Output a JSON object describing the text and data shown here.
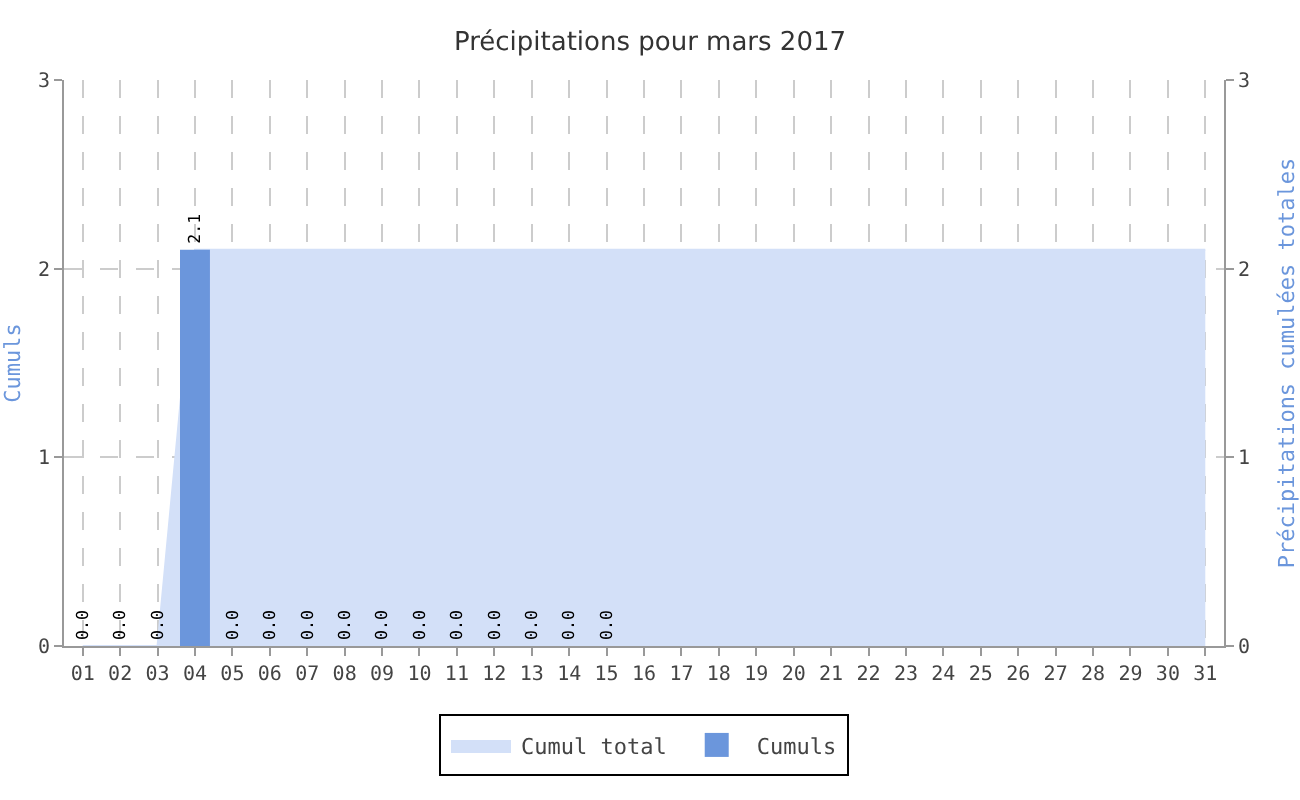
{
  "chart_data": {
    "type": "bar",
    "title": "Précipitations pour mars 2017",
    "ylabel": "Cumuls",
    "y2label": "Précipitations cumulées totales",
    "categories": [
      "01",
      "02",
      "03",
      "04",
      "05",
      "06",
      "07",
      "08",
      "09",
      "10",
      "11",
      "12",
      "13",
      "14",
      "15",
      "16",
      "17",
      "18",
      "19",
      "20",
      "21",
      "22",
      "23",
      "24",
      "25",
      "26",
      "27",
      "28",
      "29",
      "30",
      "31"
    ],
    "series": [
      {
        "name": "Cumul total",
        "type": "area",
        "axis": "y2",
        "color": "#d3e0f8",
        "values": [
          0,
          0,
          0,
          2.1,
          2.1,
          2.1,
          2.1,
          2.1,
          2.1,
          2.1,
          2.1,
          2.1,
          2.1,
          2.1,
          2.1,
          2.1,
          2.1,
          2.1,
          2.1,
          2.1,
          2.1,
          2.1,
          2.1,
          2.1,
          2.1,
          2.1,
          2.1,
          2.1,
          2.1,
          2.1,
          2.1
        ]
      },
      {
        "name": "Cumuls",
        "color": "#6b96dc",
        "values": [
          0,
          0,
          0,
          2.1,
          0,
          0,
          0,
          0,
          0,
          0,
          0,
          0,
          0,
          0,
          0,
          null,
          null,
          null,
          null,
          null,
          null,
          null,
          null,
          null,
          null,
          null,
          null,
          null,
          null,
          null,
          null
        ],
        "value_labels": [
          "0.0",
          "0.0",
          "0.0",
          "2.1",
          "0.0",
          "0.0",
          "0.0",
          "0.0",
          "0.0",
          "0.0",
          "0.0",
          "0.0",
          "0.0",
          "0.0",
          "0.0",
          null,
          null,
          null,
          null,
          null,
          null,
          null,
          null,
          null,
          null,
          null,
          null,
          null,
          null,
          null,
          null
        ]
      }
    ],
    "ylim": [
      0,
      3
    ],
    "yticks": [
      0,
      1,
      2,
      3
    ],
    "y2lim": [
      0,
      3
    ],
    "y2ticks": [
      0,
      1,
      2,
      3
    ],
    "grid": true,
    "legend": "bottom"
  }
}
